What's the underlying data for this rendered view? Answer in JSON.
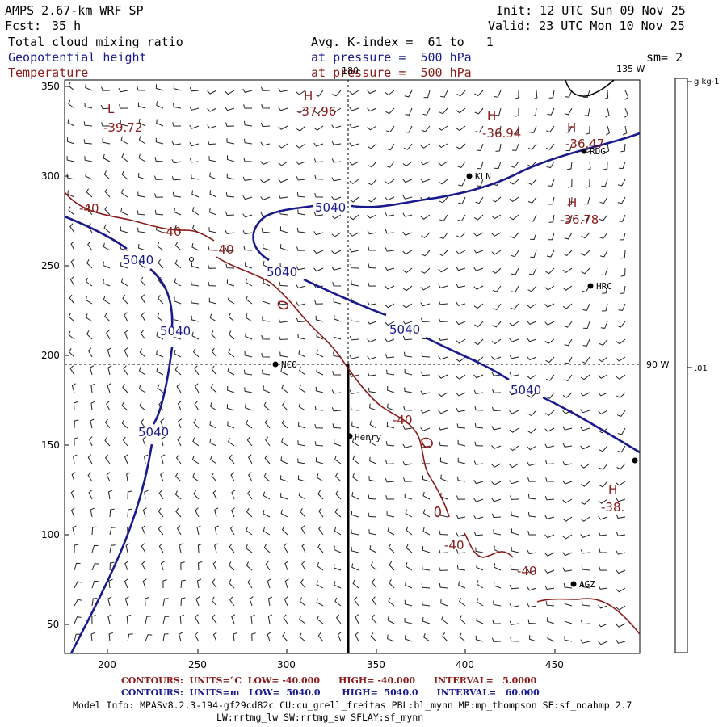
{
  "header": {
    "model": "AMPS 2.67-km WRF SP",
    "fcst_label": "Fcst:",
    "fcst_value": "35 h",
    "init": "Init: 12 UTC Sun 09 Nov 25",
    "valid": "Valid: 23 UTC Mon 10 Nov 25",
    "field1": "Total cloud mixing ratio",
    "field2": "Geopotential height",
    "field3": "Temperature",
    "avg_k": "Avg. K-index =  61 to   1",
    "pressure1": "at pressure =  500 hPa",
    "pressure2": "at pressure =  500 hPa",
    "sm": "sm= 2"
  },
  "map": {
    "x_ticks": [
      "200",
      "250",
      "300",
      "350",
      "400",
      "450"
    ],
    "y_ticks": [
      "350",
      "300",
      "250",
      "200",
      "150",
      "100",
      "50"
    ],
    "meridian_180": "180",
    "meridian_135": "135 W",
    "meridian_90": "90 W",
    "stations": [
      {
        "name": "NCO"
      },
      {
        "name": "Henry"
      },
      {
        "name": "KLN"
      },
      {
        "name": "RDG"
      },
      {
        "name": "HRC"
      },
      {
        "name": "AGZ"
      }
    ],
    "height_labels": [
      "5040",
      "5040",
      "5040",
      "5040",
      "5040",
      "5040",
      "5040"
    ],
    "temp_labels": [
      "-40",
      "-40",
      "-40",
      "-40",
      "-40",
      "-40"
    ],
    "extrema": [
      {
        "mark": "H",
        "value": "-37.96"
      },
      {
        "mark": "L",
        "value": "-39.72"
      },
      {
        "mark": "H",
        "value": "-36.94"
      },
      {
        "mark": "H",
        "value": "-36.47"
      },
      {
        "mark": "H",
        "value": "-36.78"
      },
      {
        "mark": "H",
        "value": "-38."
      }
    ]
  },
  "colorbar": {
    "unit": "g kg-1",
    "value": ".01"
  },
  "footer": {
    "contours1": "CONTOURS:  UNITS=°C  LOW= -40.000      HIGH= -40.000      INTERVAL=   5.0000",
    "contours2": "CONTOURS:  UNITS=m   LOW=  5040.0       HIGH=  5040.0      INTERVAL=   60.000",
    "model_info": "Model Info: MPASv8.2.3-194-gf29cd82c CU:cu_grell_freitas PBL:bl_mynn MP:mp_thompson SF:sf_noahmp 2.7",
    "model_info2": "LW:rrtmg_lw SW:rrtmg_sw SFLAY:sf_mynn"
  },
  "colors": {
    "height": "#1a1a8c",
    "temp": "#8b1a1a",
    "text": "#000000"
  }
}
